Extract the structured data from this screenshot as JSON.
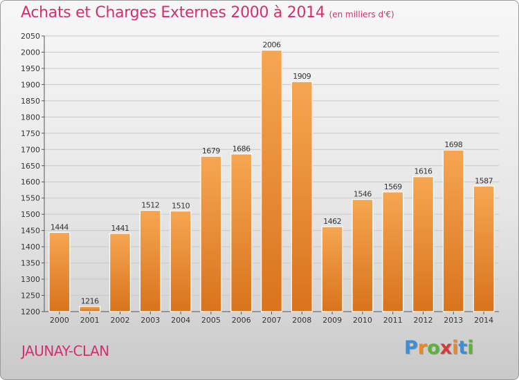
{
  "header": {
    "title": "Achats et Charges Externes 2000 à 2014",
    "unit": "(en milliers d'€)"
  },
  "footer": {
    "place": "JAUNAY-CLAN",
    "brand": "Proxiti",
    "brand_letters": [
      "P",
      "r",
      "o",
      "x",
      "i",
      "t",
      "i"
    ],
    "brand_colors": [
      "#3a8fd6",
      "#e5892a",
      "#5bb33a",
      "#d43a3a",
      "#e5892a",
      "#3a8fd6",
      "#5bb33a"
    ]
  },
  "chart_data": {
    "type": "bar",
    "title": "Achats et Charges Externes 2000 à 2014",
    "subtitle": "(en milliers d'€)",
    "xlabel": "",
    "ylabel": "",
    "categories": [
      "2000",
      "2001",
      "2002",
      "2003",
      "2004",
      "2005",
      "2006",
      "2007",
      "2008",
      "2009",
      "2010",
      "2011",
      "2012",
      "2013",
      "2014"
    ],
    "values": [
      1444,
      1216,
      1441,
      1512,
      1510,
      1679,
      1686,
      2006,
      1909,
      1462,
      1546,
      1569,
      1616,
      1698,
      1587
    ],
    "ylim": [
      1200,
      2050
    ],
    "yticks": [
      1200,
      1250,
      1300,
      1350,
      1400,
      1450,
      1500,
      1550,
      1600,
      1650,
      1700,
      1750,
      1800,
      1850,
      1900,
      1950,
      2000,
      2050
    ],
    "grid": true,
    "legend": "none",
    "bar_color": "#f0923a",
    "bar_color_light": "#f6a652",
    "bar_color_dark": "#d9731c"
  }
}
